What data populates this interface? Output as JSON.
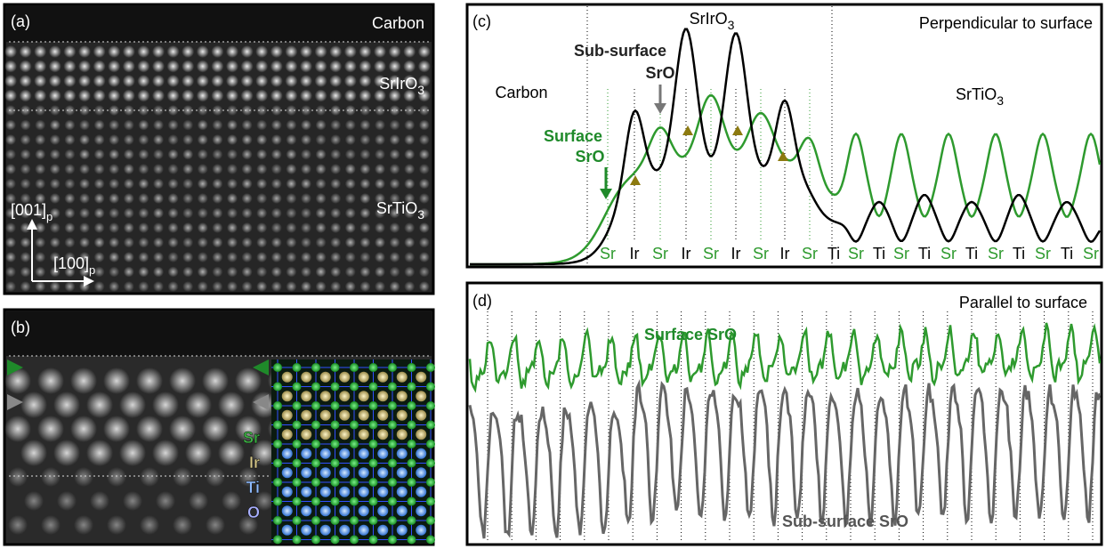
{
  "panel_a": {
    "label": "(a)",
    "carbon": "Carbon",
    "sriro3": {
      "base": "SrIrO",
      "sub": "3"
    },
    "srtio3": {
      "base": "SrTiO",
      "sub": "3"
    },
    "axis_001": {
      "base": "[001]",
      "sub": "p"
    },
    "axis_100": {
      "base": "[100]",
      "sub": "p"
    }
  },
  "panel_b": {
    "label": "(b)",
    "legend": [
      {
        "text": "Sr",
        "color": "#3cb043"
      },
      {
        "text": "Ir",
        "color": "#d8c98a"
      },
      {
        "text": "Ti",
        "color": "#8fbcff"
      },
      {
        "text": "O",
        "color": "#a9b0ff"
      }
    ]
  },
  "panel_c": {
    "label": "(c)",
    "title": "Perpendicular to surface",
    "carbon": "Carbon",
    "sriro3": {
      "base": "SrIrO",
      "sub": "3"
    },
    "srtio3": {
      "base": "SrTiO",
      "sub": "3"
    },
    "subsurface": [
      "Sub-surface",
      "SrO"
    ],
    "surface": [
      "Surface",
      "SrO"
    ],
    "columns": [
      {
        "text": "Sr",
        "color": "#2e9a2e"
      },
      {
        "text": "Ir",
        "color": "#000000"
      },
      {
        "text": "Sr",
        "color": "#2e9a2e"
      },
      {
        "text": "Ir",
        "color": "#000000"
      },
      {
        "text": "Sr",
        "color": "#2e9a2e"
      },
      {
        "text": "Ir",
        "color": "#000000"
      },
      {
        "text": "Sr",
        "color": "#2e9a2e"
      },
      {
        "text": "Ir",
        "color": "#000000"
      },
      {
        "text": "Sr",
        "color": "#2e9a2e"
      },
      {
        "text": "Ti",
        "color": "#000000"
      },
      {
        "text": "Sr",
        "color": "#2e9a2e"
      },
      {
        "text": "Ti",
        "color": "#000000"
      },
      {
        "text": "Sr",
        "color": "#2e9a2e"
      },
      {
        "text": "Ti",
        "color": "#000000"
      },
      {
        "text": "Sr",
        "color": "#2e9a2e"
      },
      {
        "text": "Ti",
        "color": "#000000"
      },
      {
        "text": "Sr",
        "color": "#2e9a2e"
      },
      {
        "text": "Ti",
        "color": "#000000"
      },
      {
        "text": "Sr",
        "color": "#2e9a2e"
      },
      {
        "text": "Ti",
        "color": "#000000"
      },
      {
        "text": "Sr",
        "color": "#2e9a2e"
      }
    ]
  },
  "panel_d": {
    "label": "(d)",
    "title": "Parallel to surface",
    "surface": "Surface SrO",
    "subsurface": "Sub-surface SrO"
  }
}
